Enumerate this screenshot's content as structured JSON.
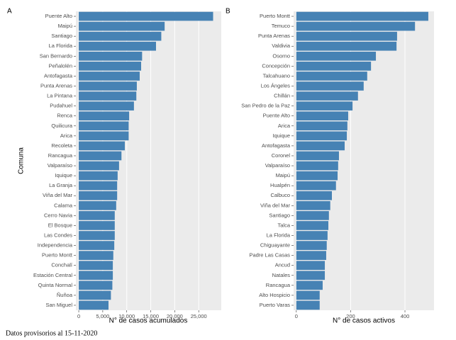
{
  "chart_data": [
    {
      "type": "barh",
      "panel": "A",
      "ylabel": "Comuna",
      "xlabel": "N° de casos acumulados",
      "color": "#4682b4",
      "grid": true,
      "categories": [
        "Puente Alto",
        "Maipú",
        "Santiago",
        "La Florida",
        "San Bernardo",
        "Peñalolén",
        "Antofagasta",
        "Punta Arenas",
        "La Pintana",
        "Pudahuel",
        "Renca",
        "Quilicura",
        "Arica",
        "Recoleta",
        "Rancagua",
        "Valparaíso",
        "Iquique",
        "La Granja",
        "Viña del Mar",
        "Calama",
        "Cerro Navia",
        "El Bosque",
        "Las Condes",
        "Independencia",
        "Puerto Montt",
        "Conchalí",
        "Estación Central",
        "Quinta Normal",
        "Ñuñoa",
        "San Miguel"
      ],
      "values": [
        28000,
        17900,
        17200,
        16100,
        13200,
        13000,
        12700,
        12100,
        12000,
        11500,
        10500,
        10400,
        10400,
        9600,
        8900,
        8400,
        8100,
        8000,
        8000,
        7800,
        7500,
        7500,
        7500,
        7400,
        7200,
        7100,
        7100,
        7000,
        6700,
        6200
      ],
      "xlim": [
        -600,
        29700
      ],
      "xticks": [
        0,
        {
          "value": 5000,
          "label": "5,000"
        },
        {
          "value": 10000,
          "label": "10,000"
        },
        {
          "value": 15000,
          "label": "15,000"
        },
        {
          "value": 20000,
          "label": "20,000"
        },
        {
          "value": 25000,
          "label": "25,000"
        }
      ]
    },
    {
      "type": "barh",
      "panel": "B",
      "xlabel": "N° de casos activos",
      "color": "#4682b4",
      "grid": true,
      "categories": [
        "Puerto Montt",
        "Temuco",
        "Punta Arenas",
        "Valdivia",
        "Osorno",
        "Concepción",
        "Talcahuano",
        "Los Ángeles",
        "Chillán",
        "San Pedro de la Paz",
        "Puente Alto",
        "Arica",
        "Iquique",
        "Antofagasta",
        "Coronel",
        "Valparaíso",
        "Maipú",
        "Hualpén",
        "Calbuco",
        "Viña del Mar",
        "Santiago",
        "Talca",
        "La Florida",
        "Chiguayante",
        "Padre Las Casas",
        "Ancud",
        "Natales",
        "Rancagua",
        "Alto Hospicio",
        "Puerto Varas"
      ],
      "values": [
        486,
        437,
        371,
        369,
        293,
        275,
        261,
        248,
        227,
        207,
        191,
        188,
        186,
        178,
        157,
        154,
        152,
        146,
        131,
        125,
        120,
        118,
        115,
        112,
        110,
        105,
        105,
        97,
        86,
        86
      ],
      "xlim": [
        -10,
        507
      ],
      "xticks": [
        0,
        200,
        400
      ]
    }
  ],
  "footer": "Datos provisorios al 15-11-2020"
}
